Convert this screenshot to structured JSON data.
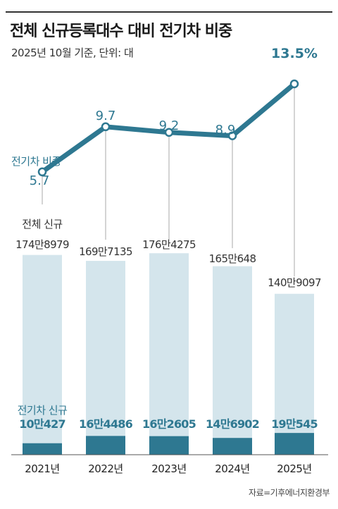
{
  "title": "전체 신규등록대수 대비 전기차 비중",
  "subtitle": "2025년 10월 기준, 단위: 대",
  "source": "자료=기후에너지환경부",
  "colors": {
    "total_bar": "#d4e5ec",
    "ev_bar": "#2e7891",
    "line": "#2e7891",
    "ratio_label": "#2e7891",
    "total_label": "#333333",
    "leader": "#aaaaaa"
  },
  "chart_data": {
    "type": "bar+line",
    "categories": [
      "2021년",
      "2022년",
      "2023년",
      "2024년",
      "2025년"
    ],
    "series_labels": {
      "total": "전체 신규",
      "ev": "전기차 신규",
      "ratio": "전기차 비중"
    },
    "total_values": [
      1748979,
      1697135,
      1764275,
      1650648,
      1409097
    ],
    "total_labels": [
      "174만8979",
      "169만7135",
      "176만4275",
      "165만648",
      "140만9097"
    ],
    "ev_values": [
      100427,
      164486,
      162605,
      146902,
      190545
    ],
    "ev_labels": [
      "10만427",
      "16만4486",
      "16만2605",
      "14만6902",
      "19만545"
    ],
    "ratio_values": [
      5.7,
      9.7,
      9.2,
      8.9,
      13.5
    ],
    "ratio_labels": [
      "5.7",
      "9.7",
      "9.2",
      "8.9",
      "13.5%"
    ],
    "ratio_ylim": [
      0,
      15
    ]
  }
}
